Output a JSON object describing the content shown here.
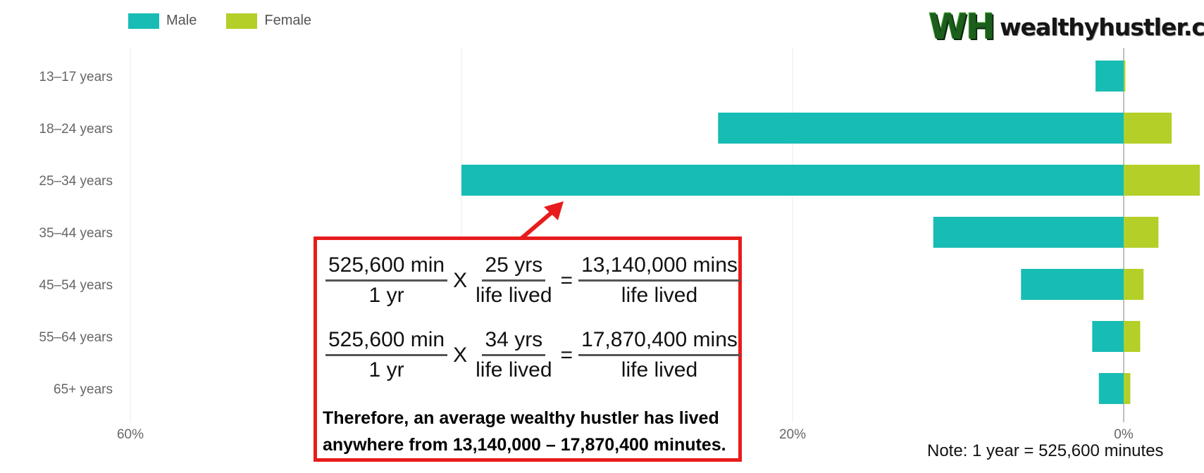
{
  "legend": [
    {
      "name": "Male",
      "color": "#17bcb4"
    },
    {
      "name": "Female",
      "color": "#b3cf28"
    }
  ],
  "logo": {
    "mark": "WH",
    "text": "wealthyhustler.com"
  },
  "note": "Note: 1 year = 525,600 minutes",
  "chart_data": {
    "type": "bar",
    "orientation": "horizontal",
    "categories": [
      "13–17 years",
      "18–24 years",
      "25–34 years",
      "35–44 years",
      "45–54 years",
      "55–64 years",
      "65+ years"
    ],
    "series": [
      {
        "name": "Male",
        "color": "#17bcb4",
        "values": [
          1.7,
          24.5,
          40.0,
          11.5,
          6.2,
          1.9,
          1.5
        ]
      },
      {
        "name": "Female",
        "color": "#b3cf28",
        "values": [
          0.1,
          2.9,
          4.6,
          2.1,
          1.2,
          1.0,
          0.4
        ]
      }
    ],
    "x_ticks": [
      "60%",
      "20%",
      "0%"
    ],
    "grid": true,
    "legend_position": "top-left"
  },
  "formula": {
    "row1": {
      "a_num": "525,600 min",
      "a_den": "1 yr",
      "op1": "X",
      "b_num": "25 yrs",
      "b_den": "life lived",
      "op2": "=",
      "c_num": "13,140,000 mins",
      "c_den": "life lived"
    },
    "row2": {
      "a_num": "525,600 min",
      "a_den": "1 yr",
      "op1": "X",
      "b_num": "34 yrs",
      "b_den": "life lived",
      "op2": "=",
      "c_num": "17,870,400 mins",
      "c_den": "life lived"
    },
    "conclusion_line1": "Therefore, an average wealthy hustler has lived",
    "conclusion_line2": "anywhere from 13,140,000 – 17,870,400 minutes."
  }
}
